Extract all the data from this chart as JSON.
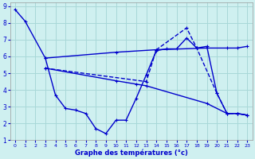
{
  "background_color": "#cff0f0",
  "grid_color": "#a8d8d8",
  "line_color": "#0000cc",
  "xlabel": "Graphe des températures (°c)",
  "xlim": [
    -0.5,
    23.5
  ],
  "ylim": [
    1,
    9.2
  ],
  "xticks": [
    0,
    1,
    2,
    3,
    4,
    5,
    6,
    7,
    8,
    9,
    10,
    11,
    12,
    13,
    14,
    15,
    16,
    17,
    18,
    19,
    20,
    21,
    22,
    23
  ],
  "yticks": [
    1,
    2,
    3,
    4,
    5,
    6,
    7,
    8,
    9
  ],
  "line1_x": [
    0,
    1,
    3,
    4,
    5,
    6,
    7,
    8,
    9,
    10,
    11,
    12,
    13,
    14,
    15,
    16,
    17,
    18,
    19,
    20,
    21,
    22,
    23
  ],
  "line1_y": [
    8.8,
    8.1,
    5.9,
    3.7,
    2.9,
    2.8,
    2.6,
    1.7,
    1.4,
    2.2,
    2.2,
    3.5,
    4.9,
    6.35,
    6.45,
    6.45,
    7.1,
    6.5,
    6.6,
    3.8,
    2.6,
    2.6,
    2.5
  ],
  "line2_x": [
    3,
    10,
    14,
    19,
    21,
    22,
    23
  ],
  "line2_y": [
    5.9,
    6.25,
    6.4,
    6.5,
    6.5,
    6.5,
    6.6
  ],
  "line3_x": [
    3,
    10,
    12,
    13,
    19,
    21,
    22,
    23
  ],
  "line3_y": [
    5.3,
    4.55,
    4.35,
    4.25,
    3.2,
    2.6,
    2.6,
    2.5
  ],
  "line4_x": [
    3,
    13,
    14,
    17,
    18,
    20,
    21,
    22,
    23
  ],
  "line4_y": [
    5.3,
    4.5,
    6.4,
    7.7,
    6.5,
    3.8,
    2.6,
    2.6,
    2.5
  ]
}
